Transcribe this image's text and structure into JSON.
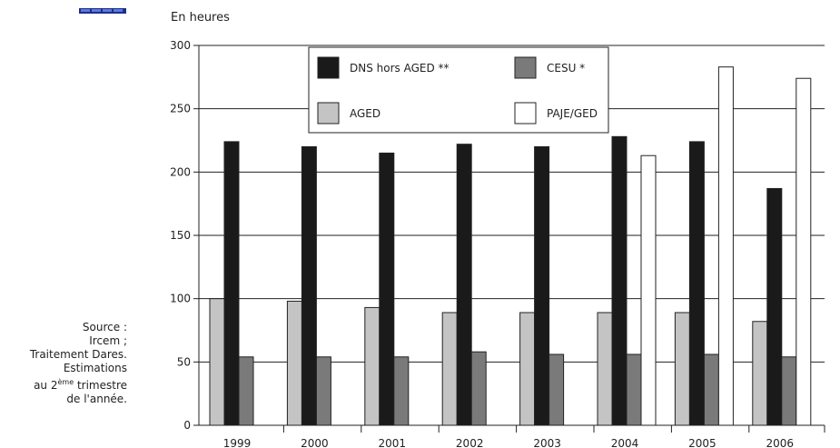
{
  "unit_label": "En heures",
  "source_note": {
    "line1": "Source :",
    "line2": "Ircem ;",
    "line3": "Traitement Dares.",
    "line4": "Estimations",
    "line5_prefix": "au 2",
    "line5_sup": "ème",
    "line5_suffix": " trimestre",
    "line6": "de l'année."
  },
  "chart_data": {
    "type": "bar",
    "title": "",
    "xlabel": "",
    "ylabel": "En heures",
    "ylim": [
      0,
      300
    ],
    "yticks": [
      0,
      50,
      100,
      150,
      200,
      250,
      300
    ],
    "categories": [
      "1999",
      "2000",
      "2001",
      "2002",
      "2003",
      "2004",
      "2005",
      "2006"
    ],
    "grid": "horizontal",
    "legend_position": "top-center",
    "series": [
      {
        "name": "AGED",
        "color": "#c4c4c4",
        "values": [
          100,
          98,
          93,
          89,
          89,
          89,
          89,
          82
        ]
      },
      {
        "name": "DNS hors AGED **",
        "color": "#1a1a1a",
        "values": [
          224,
          220,
          215,
          222,
          220,
          228,
          224,
          187
        ]
      },
      {
        "name": "CESU *",
        "color": "#7a7a7a",
        "values": [
          54,
          54,
          54,
          58,
          56,
          56,
          56,
          54
        ]
      },
      {
        "name": "PAJE/GED",
        "color": "#ffffff",
        "values": [
          null,
          null,
          null,
          null,
          null,
          213,
          283,
          274
        ]
      }
    ],
    "legend_order": [
      "DNS hors AGED **",
      "CESU *",
      "AGED",
      "PAJE/GED"
    ]
  }
}
